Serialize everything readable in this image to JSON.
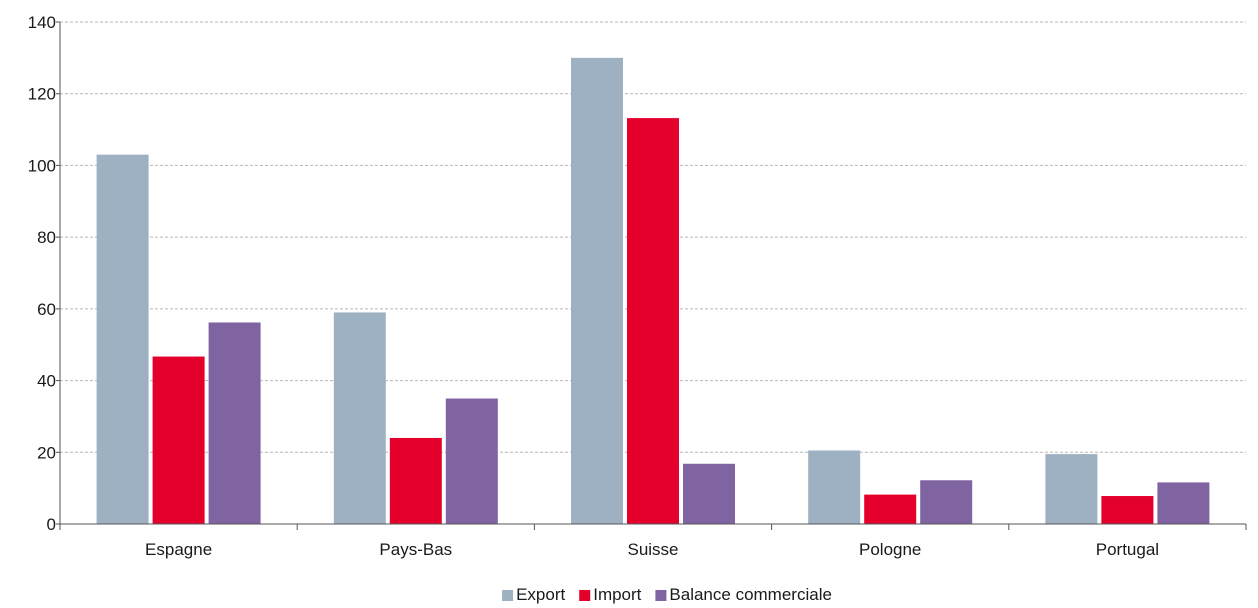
{
  "chart_data": {
    "type": "bar",
    "categories": [
      "Espagne",
      "Pays-Bas",
      "Suisse",
      "Pologne",
      "Portugal"
    ],
    "series": [
      {
        "name": "Export",
        "color": "#9eb1c2",
        "values": [
          103,
          59,
          130,
          20.5,
          19.5
        ]
      },
      {
        "name": "Import",
        "color": "#e4002b",
        "values": [
          46.7,
          24,
          113.2,
          8.2,
          7.8
        ]
      },
      {
        "name": "Balance commerciale",
        "color": "#8064a2",
        "values": [
          56.2,
          35,
          16.8,
          12.2,
          11.6
        ]
      }
    ],
    "ylim": [
      0,
      140
    ],
    "yticks": [
      0,
      20,
      40,
      60,
      80,
      100,
      120,
      140
    ],
    "grid": true,
    "legend_position": "bottom-center",
    "title": "",
    "xlabel": "",
    "ylabel": ""
  }
}
